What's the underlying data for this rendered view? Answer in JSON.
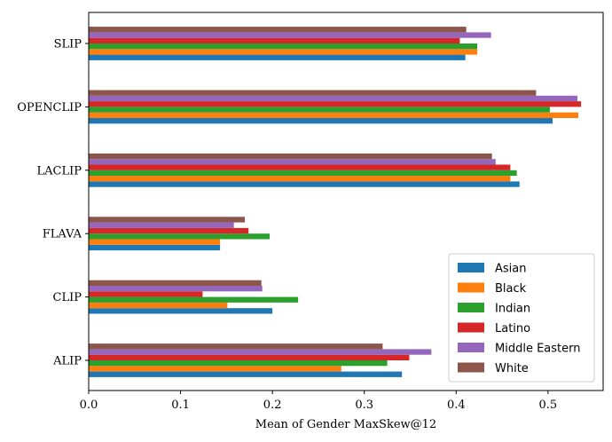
{
  "chart_data": {
    "type": "bar",
    "orientation": "horizontal",
    "title": "",
    "xlabel": "Mean of Gender MaxSkew@12",
    "ylabel": "",
    "xlim": [
      0.0,
      0.56
    ],
    "xticks": [
      "0.0",
      "0.1",
      "0.2",
      "0.3",
      "0.4",
      "0.5"
    ],
    "grid": false,
    "legend_position": "bottom-right",
    "categories": [
      "SLIP",
      "OPENCLIP",
      "LACLIP",
      "FLAVA",
      "CLIP",
      "ALIP"
    ],
    "series": [
      {
        "name": "Asian",
        "color": "#1f77b4",
        "values": [
          0.41,
          0.505,
          0.469,
          0.143,
          0.2,
          0.341
        ]
      },
      {
        "name": "Black",
        "color": "#ff7f0e",
        "values": [
          0.423,
          0.533,
          0.459,
          0.143,
          0.151,
          0.275
        ]
      },
      {
        "name": "Indian",
        "color": "#2ca02c",
        "values": [
          0.423,
          0.502,
          0.466,
          0.197,
          0.228,
          0.325
        ]
      },
      {
        "name": "Latino",
        "color": "#d62728",
        "values": [
          0.404,
          0.536,
          0.459,
          0.174,
          0.124,
          0.349
        ]
      },
      {
        "name": "Middle Eastern",
        "color": "#9467bd",
        "values": [
          0.438,
          0.532,
          0.443,
          0.158,
          0.189,
          0.373
        ]
      },
      {
        "name": "White",
        "color": "#8c564b",
        "values": [
          0.411,
          0.487,
          0.439,
          0.17,
          0.188,
          0.32
        ]
      }
    ]
  }
}
